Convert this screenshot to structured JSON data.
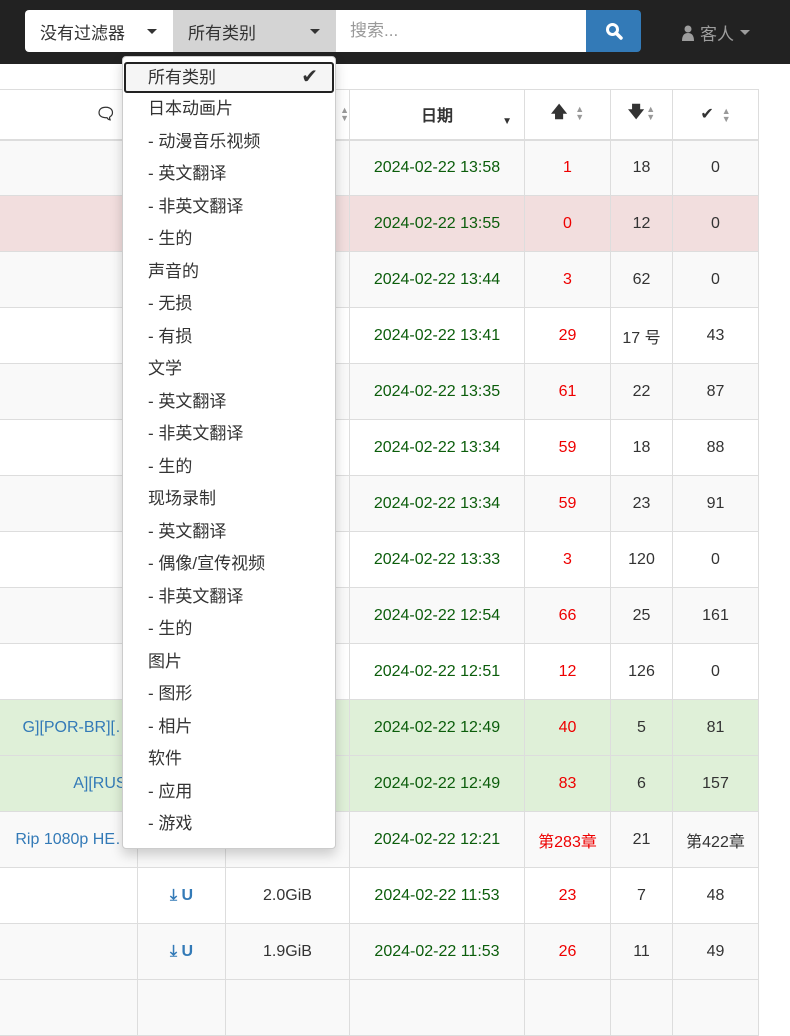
{
  "navbar": {
    "filter_label": "没有过滤器",
    "category_label": "所有类别",
    "search_placeholder": "搜索...",
    "user_label": "客人"
  },
  "table": {
    "headers": {
      "comments_icon": "comments-icon",
      "date": "日期",
      "seeders_icon": "arrow-up-icon",
      "leechers_icon": "arrow-down-icon",
      "completed_icon": "check-icon"
    },
    "rows": [
      {
        "name": "",
        "size": "",
        "date": "2024-02-22 13:58",
        "seeders": "1",
        "leechers": "18",
        "completed": "0",
        "status": "default"
      },
      {
        "name": "",
        "size": "",
        "date": "2024-02-22 13:55",
        "seeders": "0",
        "leechers": "12",
        "completed": "0",
        "status": "danger"
      },
      {
        "name": "",
        "size": "",
        "date": "2024-02-22 13:44",
        "seeders": "3",
        "leechers": "62",
        "completed": "0",
        "status": "default"
      },
      {
        "name": "",
        "size": "",
        "date": "2024-02-22 13:41",
        "seeders": "29",
        "leechers": "17 号",
        "completed": "43",
        "status": "default"
      },
      {
        "name": "",
        "size": "",
        "date": "2024-02-22 13:35",
        "seeders": "61",
        "leechers": "22",
        "completed": "87",
        "status": "default"
      },
      {
        "name": "",
        "size": "",
        "date": "2024-02-22 13:34",
        "seeders": "59",
        "leechers": "18",
        "completed": "88",
        "status": "default"
      },
      {
        "name": "",
        "size": "",
        "date": "2024-02-22 13:34",
        "seeders": "59",
        "leechers": "23",
        "completed": "91",
        "status": "default"
      },
      {
        "name": "",
        "size": "",
        "date": "2024-02-22 13:33",
        "seeders": "3",
        "leechers": "120",
        "completed": "0",
        "status": "default"
      },
      {
        "name": "",
        "size": "",
        "date": "2024-02-22 12:54",
        "seeders": "66",
        "leechers": "25",
        "completed": "161",
        "status": "default"
      },
      {
        "name": "",
        "size": "",
        "date": "2024-02-22 12:51",
        "seeders": "12",
        "leechers": "126",
        "completed": "0",
        "status": "default"
      },
      {
        "name": "G][POR-BR][…",
        "size": "",
        "date": "2024-02-22 12:49",
        "seeders": "40",
        "leechers": "5",
        "completed": "81",
        "status": "success"
      },
      {
        "name": "A][RUS]",
        "size": "",
        "date": "2024-02-22 12:49",
        "seeders": "83",
        "leechers": "6",
        "completed": "157",
        "status": "success"
      },
      {
        "name": "Rip 1080p HE…",
        "size": "",
        "date": "2024-02-22 12:21",
        "seeders": "第283章",
        "leechers": "21",
        "completed": "第422章",
        "status": "default"
      },
      {
        "name": "",
        "size": "2.0GiB",
        "date": "2024-02-22 11:53",
        "seeders": "23",
        "leechers": "7",
        "completed": "48",
        "status": "default",
        "links": true
      },
      {
        "name": "",
        "size": "1.9GiB",
        "date": "2024-02-22 11:53",
        "seeders": "26",
        "leechers": "11",
        "completed": "49",
        "status": "default",
        "links": true
      }
    ]
  },
  "category_menu": {
    "selected": "所有类别",
    "items": [
      "所有类别",
      "日本动画片",
      "- 动漫音乐视频",
      "- 英文翻译",
      "- 非英文翻译",
      "- 生的",
      "声音的",
      "- 无损",
      "- 有损",
      "文学",
      "- 英文翻译",
      "- 非英文翻译",
      "- 生的",
      "现场录制",
      "- 英文翻译",
      "- 偶像/宣传视频",
      "- 非英文翻译",
      "- 生的",
      "图片",
      "- 图形",
      "- 相片",
      "软件",
      "- 应用",
      "- 游戏"
    ]
  },
  "colors": {
    "navbar": "#222222",
    "primary": "#337ab7",
    "date": "#0b5d0b",
    "seeders": "#e00000",
    "danger_row": "#f2dede",
    "success_row": "#dff0d8"
  }
}
